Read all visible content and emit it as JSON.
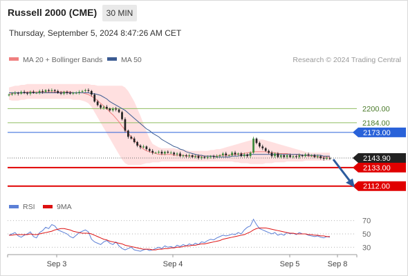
{
  "header": {
    "title": "Russell 2000 (CME)",
    "interval": "30 MIN",
    "timestamp": "Thursday, September 5, 2024 8:47:26 AM CET"
  },
  "legend": {
    "items": [
      {
        "label": "MA 20 + Bollinger Bands",
        "color": "#f08080"
      },
      {
        "label": "MA 50",
        "color": "#3b5b92"
      }
    ],
    "credit": "Research © 2024 Trading Central"
  },
  "rsi_legend": {
    "items": [
      {
        "label": "RSI",
        "color": "#5b7fd6"
      },
      {
        "label": "9MA",
        "color": "#dd1111"
      }
    ]
  },
  "chart_data": [
    {
      "type": "line",
      "title": "",
      "subtitle": "",
      "xlabel": "",
      "ylabel": "",
      "x_ticks": [
        "Sep 3",
        "Sep 4",
        "Sep 5",
        "Sep 8"
      ],
      "ylim": [
        2100,
        2245
      ],
      "grid": false,
      "levels": [
        {
          "value": 2200.0,
          "label": "2200.00",
          "style": "target",
          "color": "#8fbc5f"
        },
        {
          "value": 2184.0,
          "label": "2184.00",
          "style": "target",
          "color": "#8fbc5f"
        },
        {
          "value": 2173.0,
          "label": "2173.00",
          "style": "resistance",
          "color": "#2962d9"
        },
        {
          "value": 2143.9,
          "label": "2143.90",
          "style": "last",
          "color": "#222222"
        },
        {
          "value": 2133.0,
          "label": "2133.00",
          "style": "support",
          "color": "#e00000"
        },
        {
          "value": 2112.0,
          "label": "2112.00",
          "style": "support",
          "color": "#e00000"
        }
      ],
      "series": [
        {
          "type": "candlestick",
          "close": [
            2216,
            2217,
            2218,
            2217,
            2219,
            2218,
            2217,
            2219,
            2218,
            2218,
            2220,
            2219,
            2221,
            2220,
            2221,
            2220,
            2218,
            2217,
            2219,
            2218,
            2217,
            2218,
            2218,
            2219,
            2220,
            2221,
            2220,
            2216,
            2208,
            2204,
            2201,
            2202,
            2200,
            2198,
            2200,
            2199,
            2196,
            2188,
            2175,
            2168,
            2166,
            2162,
            2158,
            2156,
            2157,
            2154,
            2152,
            2150,
            2150,
            2151,
            2149,
            2151,
            2150,
            2150,
            2148,
            2149,
            2146,
            2147,
            2146,
            2147,
            2145,
            2146,
            2144,
            2145,
            2144,
            2145,
            2146,
            2145,
            2146,
            2147,
            2149,
            2147,
            2147,
            2150,
            2148,
            2149,
            2146,
            2148,
            2146,
            2150,
            2166,
            2161,
            2157,
            2155,
            2152,
            2150,
            2146,
            2149,
            2145,
            2147,
            2145,
            2147,
            2145,
            2146,
            2145,
            2147,
            2146,
            2148,
            2147,
            2147,
            2145,
            2146,
            2144,
            2143,
            2144,
            2143
          ]
        },
        {
          "type": "line",
          "name": "MA 20",
          "values": [
            2216,
            2217,
            2218,
            2218,
            2218,
            2218,
            2219,
            2219,
            2219,
            2219,
            2219,
            2219,
            2219,
            2219,
            2219,
            2219,
            2219,
            2219,
            2219,
            2219,
            2219,
            2218,
            2218,
            2218,
            2218,
            2217,
            2216,
            2214,
            2212,
            2209,
            2206,
            2203,
            2200,
            2196,
            2193,
            2189,
            2185,
            2180,
            2176,
            2172,
            2168,
            2164,
            2160,
            2157,
            2154,
            2152,
            2151,
            2150,
            2149,
            2148,
            2148,
            2148,
            2148,
            2148,
            2147,
            2147,
            2147,
            2147,
            2146,
            2146,
            2146,
            2146,
            2146,
            2146,
            2146,
            2146,
            2146,
            2146,
            2146,
            2147,
            2147,
            2147,
            2147,
            2148,
            2148,
            2148,
            2149,
            2149,
            2150,
            2150,
            2151,
            2151,
            2151,
            2151,
            2151,
            2150,
            2150,
            2150,
            2149,
            2149,
            2149,
            2149,
            2148,
            2148,
            2148,
            2147,
            2147,
            2147,
            2146,
            2146,
            2146,
            2145,
            2145,
            2145,
            2145,
            2145
          ]
        },
        {
          "type": "line",
          "name": "MA 50",
          "values": [
            2218,
            2218,
            2218,
            2218,
            2218,
            2218,
            2218,
            2218,
            2218,
            2218,
            2218,
            2218,
            2218,
            2218,
            2218,
            2218,
            2218,
            2218,
            2218,
            2218,
            2218,
            2218,
            2218,
            2218,
            2218,
            2218,
            2218,
            2217,
            2217,
            2216,
            2215,
            2213,
            2211,
            2208,
            2206,
            2204,
            2202,
            2200,
            2198,
            2195,
            2192,
            2189,
            2186,
            2183,
            2180,
            2177,
            2175,
            2172,
            2170,
            2168,
            2165,
            2163,
            2161,
            2159,
            2157,
            2156,
            2154,
            2153,
            2151,
            2150,
            2149,
            2148,
            2147,
            2147,
            2146,
            2146,
            2146,
            2146,
            2145,
            2145,
            2145,
            2145,
            2145,
            2146,
            2146,
            2146,
            2147,
            2147,
            2147,
            2148,
            2148,
            2148,
            2148,
            2148,
            2148,
            2148,
            2148,
            2148,
            2148,
            2148,
            2148,
            2148,
            2148,
            2148,
            2148,
            2148,
            2147,
            2147,
            2147,
            2147,
            2147,
            2147,
            2147,
            2146,
            2146,
            2146
          ]
        },
        {
          "type": "band",
          "name": "Bollinger Bands",
          "upper": [
            2224,
            2225,
            2226,
            2226,
            2227,
            2227,
            2228,
            2228,
            2228,
            2228,
            2228,
            2228,
            2228,
            2228,
            2228,
            2228,
            2228,
            2228,
            2228,
            2228,
            2228,
            2228,
            2228,
            2228,
            2228,
            2228,
            2228,
            2227,
            2227,
            2226,
            2226,
            2226,
            2226,
            2226,
            2226,
            2226,
            2226,
            2226,
            2224,
            2220,
            2214,
            2208,
            2200,
            2192,
            2183,
            2174,
            2166,
            2160,
            2158,
            2156,
            2155,
            2155,
            2155,
            2155,
            2155,
            2154,
            2154,
            2153,
            2153,
            2152,
            2152,
            2152,
            2152,
            2152,
            2152,
            2152,
            2153,
            2153,
            2154,
            2154,
            2155,
            2156,
            2157,
            2158,
            2159,
            2160,
            2161,
            2162,
            2163,
            2164,
            2165,
            2165,
            2165,
            2165,
            2164,
            2163,
            2162,
            2161,
            2160,
            2159,
            2158,
            2157,
            2156,
            2155,
            2154,
            2153,
            2152,
            2151,
            2150,
            2150,
            2150,
            2150,
            2150,
            2150,
            2150,
            2150
          ],
          "lower": [
            2210,
            2209,
            2209,
            2209,
            2210,
            2210,
            2211,
            2211,
            2211,
            2211,
            2211,
            2211,
            2211,
            2211,
            2211,
            2211,
            2211,
            2211,
            2211,
            2211,
            2211,
            2210,
            2210,
            2210,
            2209,
            2208,
            2206,
            2202,
            2196,
            2190,
            2184,
            2178,
            2172,
            2166,
            2160,
            2154,
            2148,
            2142,
            2138,
            2136,
            2136,
            2136,
            2136,
            2136,
            2137,
            2138,
            2138,
            2139,
            2139,
            2139,
            2140,
            2140,
            2140,
            2140,
            2140,
            2140,
            2140,
            2140,
            2140,
            2140,
            2140,
            2140,
            2140,
            2140,
            2140,
            2140,
            2140,
            2140,
            2140,
            2140,
            2140,
            2140,
            2140,
            2140,
            2139,
            2139,
            2138,
            2138,
            2138,
            2137,
            2137,
            2137,
            2137,
            2137,
            2138,
            2138,
            2138,
            2139,
            2139,
            2139,
            2139,
            2140,
            2140,
            2140,
            2140,
            2140,
            2140,
            2141,
            2141,
            2141,
            2141,
            2141,
            2141,
            2141,
            2141,
            2141
          ]
        }
      ],
      "forecast": {
        "from": 2143.9,
        "to": 2112.0,
        "color": "#2b5b9e"
      }
    },
    {
      "type": "line",
      "title": "",
      "xlabel": "",
      "ylabel": "",
      "ylim": [
        22,
        78
      ],
      "y_ticks": [
        70,
        50,
        30
      ],
      "series": [
        {
          "name": "RSI",
          "color": "#5b7fd6",
          "values": [
            48,
            50,
            52,
            47,
            45,
            48,
            50,
            53,
            46,
            44,
            52,
            55,
            60,
            58,
            64,
            62,
            56,
            54,
            52,
            50,
            46,
            44,
            48,
            52,
            54,
            56,
            53,
            42,
            38,
            36,
            34,
            38,
            40,
            36,
            34,
            38,
            32,
            28,
            26,
            28,
            30,
            26,
            25,
            24,
            26,
            27,
            25,
            26,
            28,
            30,
            28,
            32,
            30,
            31,
            29,
            33,
            31,
            34,
            32,
            35,
            33,
            36,
            34,
            38,
            37,
            40,
            42,
            41,
            44,
            46,
            48,
            47,
            48,
            50,
            49,
            52,
            50,
            56,
            60,
            62,
            72,
            64,
            58,
            56,
            54,
            52,
            50,
            52,
            48,
            50,
            48,
            52,
            50,
            51,
            49,
            52,
            50,
            50,
            48,
            47,
            46,
            47,
            45,
            44,
            46,
            45
          ]
        },
        {
          "name": "9MA",
          "color": "#dd1111",
          "values": [
            48,
            48,
            49,
            49,
            49,
            49,
            49,
            50,
            49,
            49,
            50,
            51,
            52,
            53,
            54,
            56,
            57,
            58,
            58,
            57,
            56,
            54,
            53,
            52,
            51,
            51,
            51,
            50,
            48,
            46,
            44,
            42,
            41,
            39,
            38,
            37,
            36,
            35,
            33,
            32,
            31,
            30,
            29,
            28,
            27,
            27,
            27,
            26,
            26,
            27,
            27,
            28,
            28,
            29,
            29,
            30,
            30,
            31,
            32,
            32,
            33,
            33,
            34,
            35,
            35,
            36,
            37,
            38,
            39,
            40,
            42,
            43,
            44,
            45,
            46,
            47,
            48,
            49,
            51,
            53,
            56,
            58,
            59,
            59,
            59,
            58,
            57,
            56,
            55,
            54,
            53,
            52,
            51,
            51,
            50,
            50,
            50,
            50,
            49,
            49,
            48,
            48,
            47,
            47,
            46,
            46
          ]
        }
      ]
    }
  ]
}
